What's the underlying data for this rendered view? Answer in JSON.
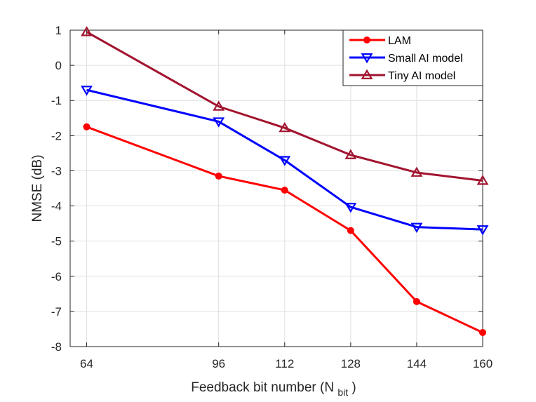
{
  "chart_data": {
    "type": "line",
    "xlabel": "Feedback bit number (N",
    "xlabel_sub": "bit",
    "xlabel_suffix": ")",
    "ylabel": "NMSE (dB)",
    "x": [
      64,
      96,
      112,
      128,
      144,
      160
    ],
    "xticks": [
      "64",
      "96",
      "112",
      "128",
      "144",
      "160"
    ],
    "yticks": [
      "1",
      "0",
      "-1",
      "-2",
      "-3",
      "-4",
      "-5",
      "-6",
      "-7",
      "-8"
    ],
    "xlim": [
      60,
      160
    ],
    "ylim": [
      -8,
      1
    ],
    "grid": true,
    "legend_position": "top-right",
    "series": [
      {
        "name": "LAM",
        "color": "#ff0000",
        "marker": "circle",
        "values": [
          -1.75,
          -3.15,
          -3.55,
          -4.7,
          -6.72,
          -7.6
        ]
      },
      {
        "name": "Small AI model",
        "color": "#0000ff",
        "marker": "triangle-down",
        "values": [
          -0.7,
          -1.6,
          -2.7,
          -4.03,
          -4.6,
          -4.67
        ]
      },
      {
        "name": "Tiny AI model",
        "color": "#a2142f",
        "marker": "triangle-up",
        "values": [
          0.95,
          -1.17,
          -1.78,
          -2.55,
          -3.05,
          -3.28
        ]
      }
    ]
  }
}
